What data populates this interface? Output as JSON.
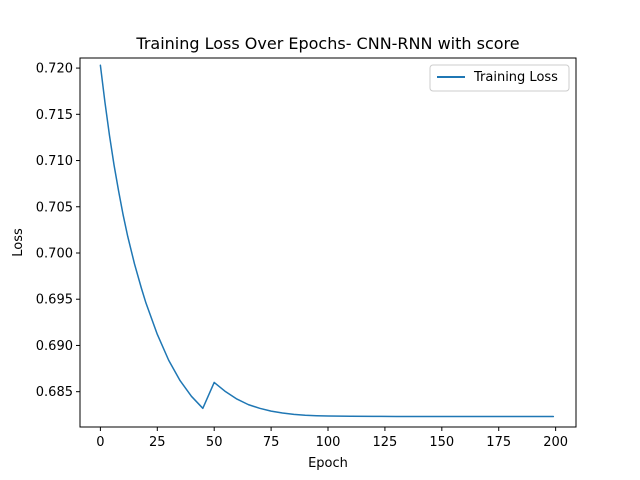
{
  "chart_data": {
    "type": "line",
    "title": "Training Loss Over Epochs- CNN-RNN with score",
    "xlabel": "Epoch",
    "ylabel": "Loss",
    "xlim": [
      -8.96,
      208.95
    ],
    "ylim": [
      0.68118,
      0.72109
    ],
    "x_ticks": [
      0,
      25,
      50,
      75,
      100,
      125,
      150,
      175,
      200
    ],
    "y_ticks": [
      0.685,
      0.69,
      0.695,
      0.7,
      0.705,
      0.71,
      0.715,
      0.72
    ],
    "grid": false,
    "legend_position": "upper-right",
    "series": [
      {
        "name": "Training Loss",
        "color": "#1f77b4",
        "x": [
          0,
          2,
          4,
          6,
          8,
          10,
          12,
          15,
          18,
          20,
          25,
          30,
          35,
          40,
          45,
          50,
          55,
          60,
          65,
          70,
          75,
          80,
          85,
          90,
          95,
          100,
          110,
          120,
          130,
          140,
          150,
          160,
          170,
          180,
          190,
          199
        ],
        "y": [
          0.7203,
          0.7163,
          0.7127,
          0.7095,
          0.7067,
          0.7041,
          0.7018,
          0.6988,
          0.6962,
          0.6946,
          0.6912,
          0.6884,
          0.6862,
          0.6845,
          0.6832,
          0.686,
          0.685,
          0.6842,
          0.6836,
          0.6832,
          0.6829,
          0.6827,
          0.68255,
          0.68245,
          0.6824,
          0.68237,
          0.68234,
          0.68233,
          0.68232,
          0.68232,
          0.68232,
          0.68232,
          0.68232,
          0.68232,
          0.68232,
          0.68232
        ]
      }
    ]
  }
}
